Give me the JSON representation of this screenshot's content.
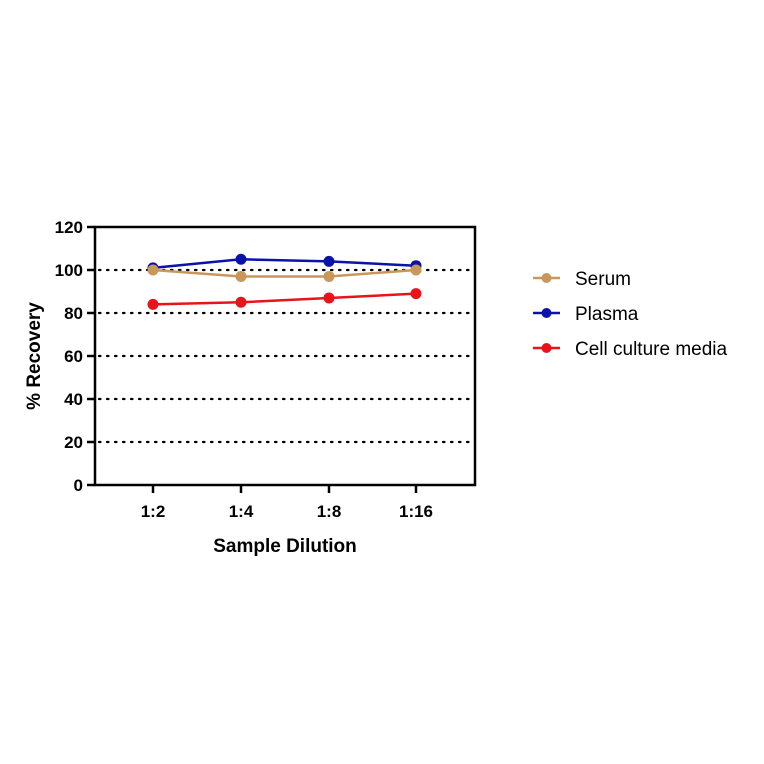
{
  "chart_data": {
    "type": "line",
    "title": "",
    "xlabel": "Sample Dilution",
    "ylabel": "% Recovery",
    "categories": [
      "1:2",
      "1:4",
      "1:8",
      "1:16"
    ],
    "ylim": [
      0,
      120
    ],
    "yticks": [
      0,
      20,
      40,
      60,
      80,
      100,
      120
    ],
    "grid": "horizontal dotted at 20,40,60,80,100",
    "legend_position": "right",
    "series": [
      {
        "name": "Serum",
        "color": "#C8985A",
        "values": [
          100,
          97,
          97,
          100
        ]
      },
      {
        "name": "Plasma",
        "color": "#0A12A8",
        "values": [
          101,
          105,
          104,
          102
        ]
      },
      {
        "name": "Cell culture media",
        "color": "#E8141A",
        "values": [
          84,
          85,
          87,
          89
        ]
      }
    ]
  },
  "axis": {
    "y_ticks": [
      "0",
      "20",
      "40",
      "60",
      "80",
      "100",
      "120"
    ],
    "x_ticks": [
      "1:2",
      "1:4",
      "1:8",
      "1:16"
    ],
    "x_title": "Sample Dilution",
    "y_title": "% Recovery"
  },
  "legend": {
    "items": [
      {
        "label": "Serum",
        "color": "#C8985A"
      },
      {
        "label": "Plasma",
        "color": "#0A12A8"
      },
      {
        "label": "Cell culture media",
        "color": "#E8141A"
      }
    ]
  }
}
